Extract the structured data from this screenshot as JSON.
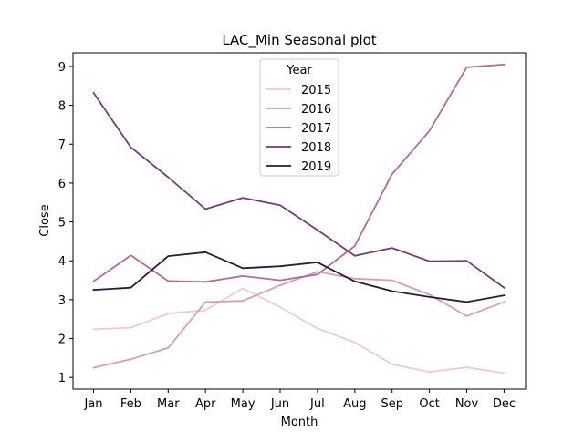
{
  "chart_data": {
    "type": "line",
    "title": "LAC_Min Seasonal plot",
    "xlabel": "Month",
    "ylabel": "Close",
    "categories": [
      "Jan",
      "Feb",
      "Mar",
      "Apr",
      "May",
      "Jun",
      "Jul",
      "Aug",
      "Sep",
      "Oct",
      "Nov",
      "Dec"
    ],
    "ylim": [
      0.7,
      9.35
    ],
    "yticks": [
      "1",
      "2",
      "3",
      "4",
      "5",
      "6",
      "7",
      "8",
      "9"
    ],
    "grid": false,
    "legend": {
      "title": "Year",
      "placement": "upper-center"
    },
    "series": [
      {
        "name": "2015",
        "color": "#ebcdc8",
        "values": [
          2.24,
          2.28,
          2.64,
          2.73,
          3.29,
          2.81,
          2.26,
          1.9,
          1.34,
          1.14,
          1.26,
          1.11
        ]
      },
      {
        "name": "2016",
        "color": "#d49fb3",
        "values": [
          1.25,
          1.47,
          1.76,
          2.94,
          2.97,
          3.37,
          3.72,
          3.54,
          3.5,
          3.13,
          2.58,
          2.94
        ]
      },
      {
        "name": "2017",
        "color": "#ad6e9b",
        "values": [
          3.47,
          4.14,
          3.48,
          3.46,
          3.61,
          3.5,
          3.65,
          4.38,
          6.23,
          7.34,
          8.98,
          9.05
        ]
      },
      {
        "name": "2018",
        "color": "#713d75",
        "values": [
          8.32,
          6.92,
          6.15,
          5.33,
          5.62,
          5.43,
          4.79,
          4.13,
          4.33,
          3.99,
          4.0,
          3.31
        ]
      },
      {
        "name": "2019",
        "color": "#2a1a3a",
        "values": [
          3.25,
          3.31,
          4.12,
          4.22,
          3.81,
          3.86,
          3.96,
          3.47,
          3.22,
          3.07,
          2.94,
          3.11
        ]
      }
    ]
  }
}
